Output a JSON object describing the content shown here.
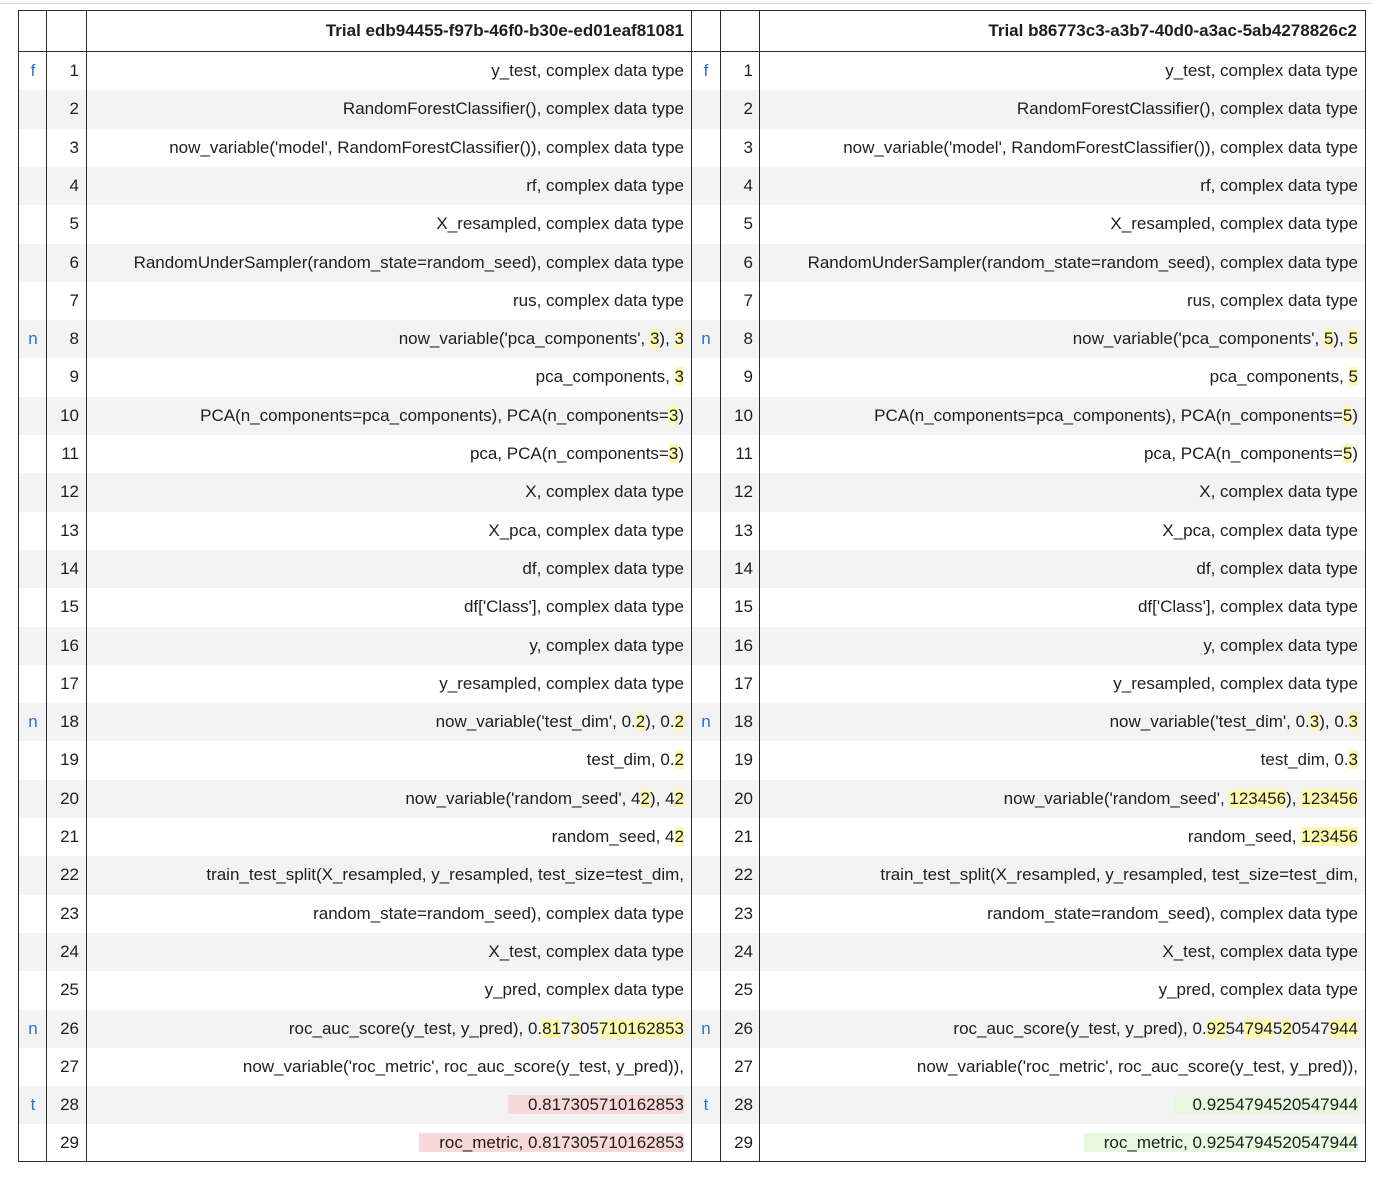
{
  "left": {
    "title": "Trial edb94455-f97b-46f0-b30e-ed01eaf81081",
    "rows": [
      {
        "flag": "f",
        "n": "1",
        "parts": [
          {
            "t": "y_test, complex data type"
          }
        ]
      },
      {
        "flag": "",
        "n": "2",
        "parts": [
          {
            "t": "RandomForestClassifier(), complex data type"
          }
        ]
      },
      {
        "flag": "",
        "n": "3",
        "parts": [
          {
            "t": "now_variable('model', RandomForestClassifier()), complex data type"
          }
        ]
      },
      {
        "flag": "",
        "n": "4",
        "parts": [
          {
            "t": "rf, complex data type"
          }
        ]
      },
      {
        "flag": "",
        "n": "5",
        "parts": [
          {
            "t": "X_resampled, complex data type"
          }
        ]
      },
      {
        "flag": "",
        "n": "6",
        "parts": [
          {
            "t": "RandomUnderSampler(random_state=random_seed), complex data type"
          }
        ]
      },
      {
        "flag": "",
        "n": "7",
        "parts": [
          {
            "t": "rus, complex data type"
          }
        ]
      },
      {
        "flag": "n",
        "n": "8",
        "parts": [
          {
            "t": "now_variable('pca_components', "
          },
          {
            "t": "3",
            "c": "y"
          },
          {
            "t": "), "
          },
          {
            "t": "3",
            "c": "y"
          }
        ]
      },
      {
        "flag": "",
        "n": "9",
        "parts": [
          {
            "t": "pca_components, "
          },
          {
            "t": "3",
            "c": "y"
          }
        ]
      },
      {
        "flag": "",
        "n": "10",
        "parts": [
          {
            "t": "PCA(n_components=pca_components), PCA(n_components="
          },
          {
            "t": "3",
            "c": "y"
          },
          {
            "t": ")"
          }
        ]
      },
      {
        "flag": "",
        "n": "11",
        "parts": [
          {
            "t": "pca, PCA(n_components="
          },
          {
            "t": "3",
            "c": "y"
          },
          {
            "t": ")"
          }
        ]
      },
      {
        "flag": "",
        "n": "12",
        "parts": [
          {
            "t": "X, complex data type"
          }
        ]
      },
      {
        "flag": "",
        "n": "13",
        "parts": [
          {
            "t": "X_pca, complex data type"
          }
        ]
      },
      {
        "flag": "",
        "n": "14",
        "parts": [
          {
            "t": "df, complex data type"
          }
        ]
      },
      {
        "flag": "",
        "n": "15",
        "parts": [
          {
            "t": "df['Class'], complex data type"
          }
        ]
      },
      {
        "flag": "",
        "n": "16",
        "parts": [
          {
            "t": "y, complex data type"
          }
        ]
      },
      {
        "flag": "",
        "n": "17",
        "parts": [
          {
            "t": "y_resampled, complex data type"
          }
        ]
      },
      {
        "flag": "n",
        "n": "18",
        "parts": [
          {
            "t": "now_variable('test_dim', 0."
          },
          {
            "t": "2",
            "c": "y"
          },
          {
            "t": "), 0."
          },
          {
            "t": "2",
            "c": "y"
          }
        ]
      },
      {
        "flag": "",
        "n": "19",
        "parts": [
          {
            "t": "test_dim, 0."
          },
          {
            "t": "2",
            "c": "y"
          }
        ]
      },
      {
        "flag": "",
        "n": "20",
        "parts": [
          {
            "t": "now_variable('random_seed', 4"
          },
          {
            "t": "2",
            "c": "y"
          },
          {
            "t": "), 4"
          },
          {
            "t": "2",
            "c": "y"
          }
        ]
      },
      {
        "flag": "",
        "n": "21",
        "parts": [
          {
            "t": "random_seed, 4"
          },
          {
            "t": "2",
            "c": "y"
          }
        ]
      },
      {
        "flag": "",
        "n": "22",
        "parts": [
          {
            "t": "train_test_split(X_resampled, y_resampled, test_size=test_dim,"
          }
        ]
      },
      {
        "flag": "",
        "n": "23",
        "parts": [
          {
            "t": "random_state=random_seed), complex data type"
          }
        ]
      },
      {
        "flag": "",
        "n": "24",
        "parts": [
          {
            "t": "X_test, complex data type"
          }
        ]
      },
      {
        "flag": "",
        "n": "25",
        "parts": [
          {
            "t": "y_pred, complex data type"
          }
        ]
      },
      {
        "flag": "n",
        "n": "26",
        "parts": [
          {
            "t": "roc_auc_score(y_test, y_pred), 0."
          },
          {
            "t": "81",
            "c": "y"
          },
          {
            "t": "7"
          },
          {
            "t": "3",
            "c": "y"
          },
          {
            "t": "05"
          },
          {
            "t": "710162853",
            "c": "y"
          }
        ]
      },
      {
        "flag": "",
        "n": "27",
        "parts": [
          {
            "t": "now_variable('roc_metric', roc_auc_score(y_test, y_pred)),"
          }
        ]
      },
      {
        "flag": "t",
        "n": "28",
        "parts": [
          {
            "t": "0.817305710162853",
            "c": "rd"
          }
        ]
      },
      {
        "flag": "",
        "n": "29",
        "parts": [
          {
            "t": "roc_metric, 0.817305710162853",
            "c": "rd"
          }
        ]
      }
    ]
  },
  "right": {
    "title": "Trial b86773c3-a3b7-40d0-a3ac-5ab4278826c2",
    "rows": [
      {
        "flag": "f",
        "n": "1",
        "parts": [
          {
            "t": "y_test, complex data type"
          }
        ]
      },
      {
        "flag": "",
        "n": "2",
        "parts": [
          {
            "t": "RandomForestClassifier(), complex data type"
          }
        ]
      },
      {
        "flag": "",
        "n": "3",
        "parts": [
          {
            "t": "now_variable('model', RandomForestClassifier()), complex data type"
          }
        ]
      },
      {
        "flag": "",
        "n": "4",
        "parts": [
          {
            "t": "rf, complex data type"
          }
        ]
      },
      {
        "flag": "",
        "n": "5",
        "parts": [
          {
            "t": "X_resampled, complex data type"
          }
        ]
      },
      {
        "flag": "",
        "n": "6",
        "parts": [
          {
            "t": "RandomUnderSampler(random_state=random_seed), complex data type"
          }
        ]
      },
      {
        "flag": "",
        "n": "7",
        "parts": [
          {
            "t": "rus, complex data type"
          }
        ]
      },
      {
        "flag": "n",
        "n": "8",
        "parts": [
          {
            "t": "now_variable('pca_components', "
          },
          {
            "t": "5",
            "c": "y"
          },
          {
            "t": "), "
          },
          {
            "t": "5",
            "c": "y"
          }
        ]
      },
      {
        "flag": "",
        "n": "9",
        "parts": [
          {
            "t": "pca_components, "
          },
          {
            "t": "5",
            "c": "y"
          }
        ]
      },
      {
        "flag": "",
        "n": "10",
        "parts": [
          {
            "t": "PCA(n_components=pca_components), PCA(n_components="
          },
          {
            "t": "5",
            "c": "y"
          },
          {
            "t": ")"
          }
        ]
      },
      {
        "flag": "",
        "n": "11",
        "parts": [
          {
            "t": "pca, PCA(n_components="
          },
          {
            "t": "5",
            "c": "y"
          },
          {
            "t": ")"
          }
        ]
      },
      {
        "flag": "",
        "n": "12",
        "parts": [
          {
            "t": "X, complex data type"
          }
        ]
      },
      {
        "flag": "",
        "n": "13",
        "parts": [
          {
            "t": "X_pca, complex data type"
          }
        ]
      },
      {
        "flag": "",
        "n": "14",
        "parts": [
          {
            "t": "df, complex data type"
          }
        ]
      },
      {
        "flag": "",
        "n": "15",
        "parts": [
          {
            "t": "df['Class'], complex data type"
          }
        ]
      },
      {
        "flag": "",
        "n": "16",
        "parts": [
          {
            "t": "y, complex data type"
          }
        ]
      },
      {
        "flag": "",
        "n": "17",
        "parts": [
          {
            "t": "y_resampled, complex data type"
          }
        ]
      },
      {
        "flag": "n",
        "n": "18",
        "parts": [
          {
            "t": "now_variable('test_dim', 0."
          },
          {
            "t": "3",
            "c": "y"
          },
          {
            "t": "), 0."
          },
          {
            "t": "3",
            "c": "y"
          }
        ]
      },
      {
        "flag": "",
        "n": "19",
        "parts": [
          {
            "t": "test_dim, 0."
          },
          {
            "t": "3",
            "c": "y"
          }
        ]
      },
      {
        "flag": "",
        "n": "20",
        "parts": [
          {
            "t": "now_variable('random_seed', "
          },
          {
            "t": "1234",
            "c": "g"
          },
          {
            "t": "56",
            "c": "y"
          },
          {
            "t": "), "
          },
          {
            "t": "1234",
            "c": "g"
          },
          {
            "t": "56",
            "c": "y"
          }
        ]
      },
      {
        "flag": "",
        "n": "21",
        "parts": [
          {
            "t": "random_seed, "
          },
          {
            "t": "1234",
            "c": "g"
          },
          {
            "t": "56",
            "c": "y"
          }
        ]
      },
      {
        "flag": "",
        "n": "22",
        "parts": [
          {
            "t": "train_test_split(X_resampled, y_resampled, test_size=test_dim,"
          }
        ]
      },
      {
        "flag": "",
        "n": "23",
        "parts": [
          {
            "t": "random_state=random_seed), complex data type"
          }
        ]
      },
      {
        "flag": "",
        "n": "24",
        "parts": [
          {
            "t": "X_test, complex data type"
          }
        ]
      },
      {
        "flag": "",
        "n": "25",
        "parts": [
          {
            "t": "y_pred, complex data type"
          }
        ]
      },
      {
        "flag": "n",
        "n": "26",
        "parts": [
          {
            "t": "roc_auc_score(y_test, y_pred), 0."
          },
          {
            "t": "92",
            "c": "y"
          },
          {
            "t": "54"
          },
          {
            "t": "794",
            "c": "y"
          },
          {
            "t": "5"
          },
          {
            "t": "2",
            "c": "y"
          },
          {
            "t": "0547"
          },
          {
            "t": "944",
            "c": "y"
          }
        ]
      },
      {
        "flag": "",
        "n": "27",
        "parts": [
          {
            "t": "now_variable('roc_metric', roc_auc_score(y_test, y_pred)),"
          }
        ]
      },
      {
        "flag": "t",
        "n": "28",
        "parts": [
          {
            "t": "0.9254794520547944",
            "c": "gr"
          }
        ]
      },
      {
        "flag": "",
        "n": "29",
        "parts": [
          {
            "t": "roc_metric, 0.9254794520547944",
            "c": "gr"
          }
        ]
      }
    ]
  },
  "colors": {
    "highlight": "#fdfab0",
    "removed": "#f8d9d9",
    "added": "#e6f8df",
    "flag": "#2f6fd6"
  }
}
